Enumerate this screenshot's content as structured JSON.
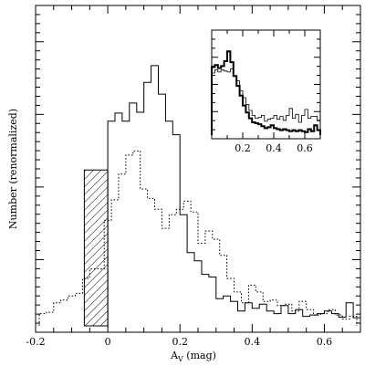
{
  "chart_data": {
    "type": "histogram",
    "xlabel_main": "A",
    "xlabel_sub": "V",
    "xlabel_unit": " (mag)",
    "ylabel": "Number (renormalized)",
    "xlim": [
      -0.2,
      0.7
    ],
    "ylim": [
      0,
      1
    ],
    "x_ticks": [
      -0.2,
      0,
      0.2,
      0.4,
      0.6
    ],
    "x_tick_labels": [
      "-0.2",
      "0",
      "0.2",
      "0.4",
      "0.6"
    ],
    "hatched_bar": {
      "x0": -0.065,
      "x1": 0.0,
      "height": 0.575
    },
    "solid_series": {
      "style": "solid",
      "edges": [
        0.0,
        0.02,
        0.04,
        0.06,
        0.08,
        0.1,
        0.12,
        0.14,
        0.16,
        0.18,
        0.2,
        0.22,
        0.24,
        0.26,
        0.28,
        0.3,
        0.32,
        0.34,
        0.36,
        0.38,
        0.4,
        0.42,
        0.44,
        0.46,
        0.48,
        0.5,
        0.52,
        0.54,
        0.56,
        0.58,
        0.6,
        0.62,
        0.64,
        0.66,
        0.68,
        0.7
      ],
      "values": [
        0.755,
        0.785,
        0.755,
        0.822,
        0.788,
        0.898,
        0.96,
        0.855,
        0.755,
        0.705,
        0.41,
        0.27,
        0.24,
        0.19,
        0.18,
        0.1,
        0.11,
        0.09,
        0.055,
        0.085,
        0.065,
        0.08,
        0.055,
        0.045,
        0.075,
        0.045,
        0.06,
        0.035,
        0.04,
        0.045,
        0.055,
        0.045,
        0.032,
        0.085,
        0.03
      ]
    },
    "dotted_series": {
      "style": "dotted",
      "edges": [
        -0.19,
        -0.17,
        -0.15,
        -0.13,
        -0.11,
        -0.09,
        -0.07,
        -0.05,
        -0.03,
        -0.01,
        0.01,
        0.03,
        0.05,
        0.07,
        0.09,
        0.11,
        0.13,
        0.15,
        0.17,
        0.19,
        0.21,
        0.23,
        0.25,
        0.27,
        0.29,
        0.31,
        0.33,
        0.35,
        0.37,
        0.39,
        0.41,
        0.43,
        0.45,
        0.47,
        0.49,
        0.51,
        0.53,
        0.55,
        0.57,
        0.59,
        0.61,
        0.63,
        0.65,
        0.67,
        0.69
      ],
      "values": [
        0.045,
        0.05,
        0.085,
        0.095,
        0.11,
        0.12,
        0.175,
        0.21,
        0.21,
        0.39,
        0.465,
        0.56,
        0.63,
        0.645,
        0.505,
        0.47,
        0.43,
        0.36,
        0.41,
        0.43,
        0.46,
        0.42,
        0.305,
        0.35,
        0.32,
        0.26,
        0.175,
        0.125,
        0.085,
        0.15,
        0.125,
        0.09,
        0.095,
        0.075,
        0.08,
        0.055,
        0.09,
        0.06,
        0.04,
        0.045,
        0.06,
        0.04,
        0.025,
        0.035
      ]
    },
    "inset": {
      "xlim": [
        0.0,
        0.7
      ],
      "x_ticks": [
        0.2,
        0.4,
        0.6
      ],
      "x_tick_labels": [
        "0.2",
        "0.4",
        "0.6"
      ],
      "thick_series": {
        "style": "solid-thick",
        "edges": [
          0.0,
          0.02,
          0.04,
          0.06,
          0.08,
          0.1,
          0.12,
          0.14,
          0.16,
          0.18,
          0.2,
          0.22,
          0.24,
          0.26,
          0.28,
          0.3,
          0.32,
          0.34,
          0.36,
          0.38,
          0.4,
          0.42,
          0.44,
          0.46,
          0.48,
          0.5,
          0.52,
          0.54,
          0.56,
          0.58,
          0.6,
          0.62,
          0.64,
          0.66,
          0.68,
          0.7
        ],
        "values": [
          0.69,
          0.71,
          0.68,
          0.7,
          0.75,
          0.85,
          0.74,
          0.6,
          0.5,
          0.4,
          0.3,
          0.23,
          0.17,
          0.13,
          0.12,
          0.11,
          0.09,
          0.07,
          0.08,
          0.1,
          0.07,
          0.06,
          0.05,
          0.06,
          0.05,
          0.04,
          0.05,
          0.04,
          0.05,
          0.04,
          0.03,
          0.06,
          0.04,
          0.1,
          0.05
        ]
      },
      "thin_series": {
        "style": "solid-thin",
        "edges": [
          0.0,
          0.02,
          0.04,
          0.06,
          0.08,
          0.1,
          0.12,
          0.14,
          0.16,
          0.18,
          0.2,
          0.22,
          0.24,
          0.26,
          0.28,
          0.3,
          0.32,
          0.34,
          0.36,
          0.38,
          0.4,
          0.42,
          0.44,
          0.46,
          0.48,
          0.5,
          0.52,
          0.54,
          0.56,
          0.58,
          0.6,
          0.62,
          0.64,
          0.66,
          0.68,
          0.7
        ],
        "values": [
          0.63,
          0.66,
          0.64,
          0.66,
          0.65,
          0.64,
          0.67,
          0.6,
          0.55,
          0.45,
          0.38,
          0.31,
          0.25,
          0.2,
          0.17,
          0.18,
          0.2,
          0.14,
          0.16,
          0.17,
          0.2,
          0.16,
          0.19,
          0.15,
          0.2,
          0.27,
          0.17,
          0.21,
          0.13,
          0.2,
          0.26,
          0.17,
          0.19,
          0.19,
          0.15
        ]
      }
    }
  }
}
